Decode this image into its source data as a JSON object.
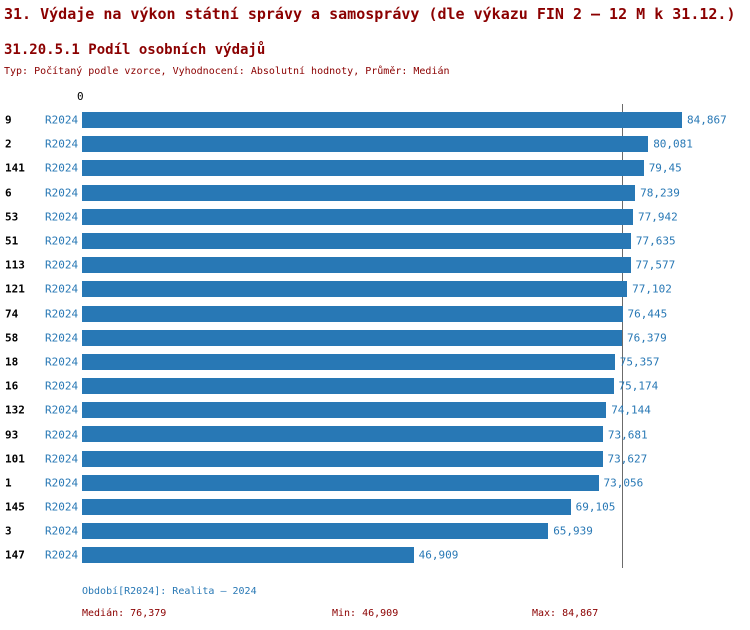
{
  "header": {
    "title": "31. Výdaje na výkon státní správy a samosprávy (dle výkazu FIN 2 – 12 M k 31.12.)",
    "subtitle": "31.20.5.1 Podíl osobních výdajů",
    "type_line": "Typ: Počítaný podle vzorce, Vyhodnocení: Absolutní hodnoty, Průměr: Medián"
  },
  "chart_data": {
    "type": "bar",
    "orientation": "horizontal",
    "title": "31.20.5.1 Podíl osobních výdajů",
    "xlabel": "",
    "ylabel": "",
    "xlim": [
      0,
      84.867
    ],
    "axis_zero_label": "0",
    "median": 76.379,
    "median_line": true,
    "bar_color": "#2878b5",
    "legend": "none",
    "categories": [
      "9",
      "2",
      "141",
      "6",
      "53",
      "51",
      "113",
      "121",
      "74",
      "58",
      "18",
      "16",
      "132",
      "93",
      "101",
      "1",
      "145",
      "3",
      "147"
    ],
    "series_period": "R2024",
    "rows": [
      {
        "code": "9",
        "period": "R2024",
        "value": 84.867,
        "label": "84,867"
      },
      {
        "code": "2",
        "period": "R2024",
        "value": 80.081,
        "label": "80,081"
      },
      {
        "code": "141",
        "period": "R2024",
        "value": 79.45,
        "label": "79,45"
      },
      {
        "code": "6",
        "period": "R2024",
        "value": 78.239,
        "label": "78,239"
      },
      {
        "code": "53",
        "period": "R2024",
        "value": 77.942,
        "label": "77,942"
      },
      {
        "code": "51",
        "period": "R2024",
        "value": 77.635,
        "label": "77,635"
      },
      {
        "code": "113",
        "period": "R2024",
        "value": 77.577,
        "label": "77,577"
      },
      {
        "code": "121",
        "period": "R2024",
        "value": 77.102,
        "label": "77,102"
      },
      {
        "code": "74",
        "period": "R2024",
        "value": 76.445,
        "label": "76,445"
      },
      {
        "code": "58",
        "period": "R2024",
        "value": 76.379,
        "label": "76,379"
      },
      {
        "code": "18",
        "period": "R2024",
        "value": 75.357,
        "label": "75,357"
      },
      {
        "code": "16",
        "period": "R2024",
        "value": 75.174,
        "label": "75,174"
      },
      {
        "code": "132",
        "period": "R2024",
        "value": 74.144,
        "label": "74,144"
      },
      {
        "code": "93",
        "period": "R2024",
        "value": 73.681,
        "label": "73,681"
      },
      {
        "code": "101",
        "period": "R2024",
        "value": 73.627,
        "label": "73,627"
      },
      {
        "code": "1",
        "period": "R2024",
        "value": 73.056,
        "label": "73,056"
      },
      {
        "code": "145",
        "period": "R2024",
        "value": 69.105,
        "label": "69,105"
      },
      {
        "code": "3",
        "period": "R2024",
        "value": 65.939,
        "label": "65,939"
      },
      {
        "code": "147",
        "period": "R2024",
        "value": 46.909,
        "label": "46,909"
      }
    ]
  },
  "footer": {
    "period_line": "Období[R2024]: Realita – 2024",
    "median_label": "Medián: 76,379",
    "min_label": "Min: 46,909",
    "max_label": "Max: 84,867"
  }
}
